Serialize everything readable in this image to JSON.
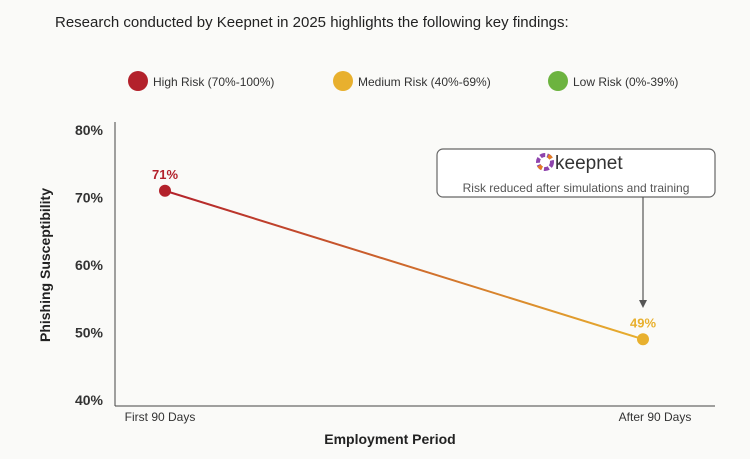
{
  "header": {
    "text": "Research conducted by Keepnet in 2025 highlights the following key findings:"
  },
  "annotation": {
    "brand": "keepnet",
    "text": "Risk reduced after simulations and training"
  },
  "chart_data": {
    "type": "line",
    "title": "",
    "xlabel": "Employment Period",
    "ylabel": "Phishing Susceptibility",
    "categories": [
      "First 90 Days",
      "After 90 Days"
    ],
    "values": [
      71,
      49
    ],
    "data_labels": [
      "71%",
      "49%"
    ],
    "point_colors": [
      "#b3212b",
      "#e8b02e"
    ],
    "ylim": [
      40,
      80
    ],
    "yticks": [
      {
        "v": 40,
        "label": "40%"
      },
      {
        "v": 50,
        "label": "50%"
      },
      {
        "v": 60,
        "label": "60%"
      },
      {
        "v": 70,
        "label": "70%"
      },
      {
        "v": 80,
        "label": "80%"
      }
    ],
    "grid": false,
    "legend_position": "top",
    "legend": [
      {
        "label": "High Risk (70%-100%)",
        "color": "#b3212b"
      },
      {
        "label": "Medium Risk (40%-69%)",
        "color": "#e8b02e"
      },
      {
        "label": "Low Risk (0%-39%)",
        "color": "#6cb33f"
      }
    ]
  }
}
